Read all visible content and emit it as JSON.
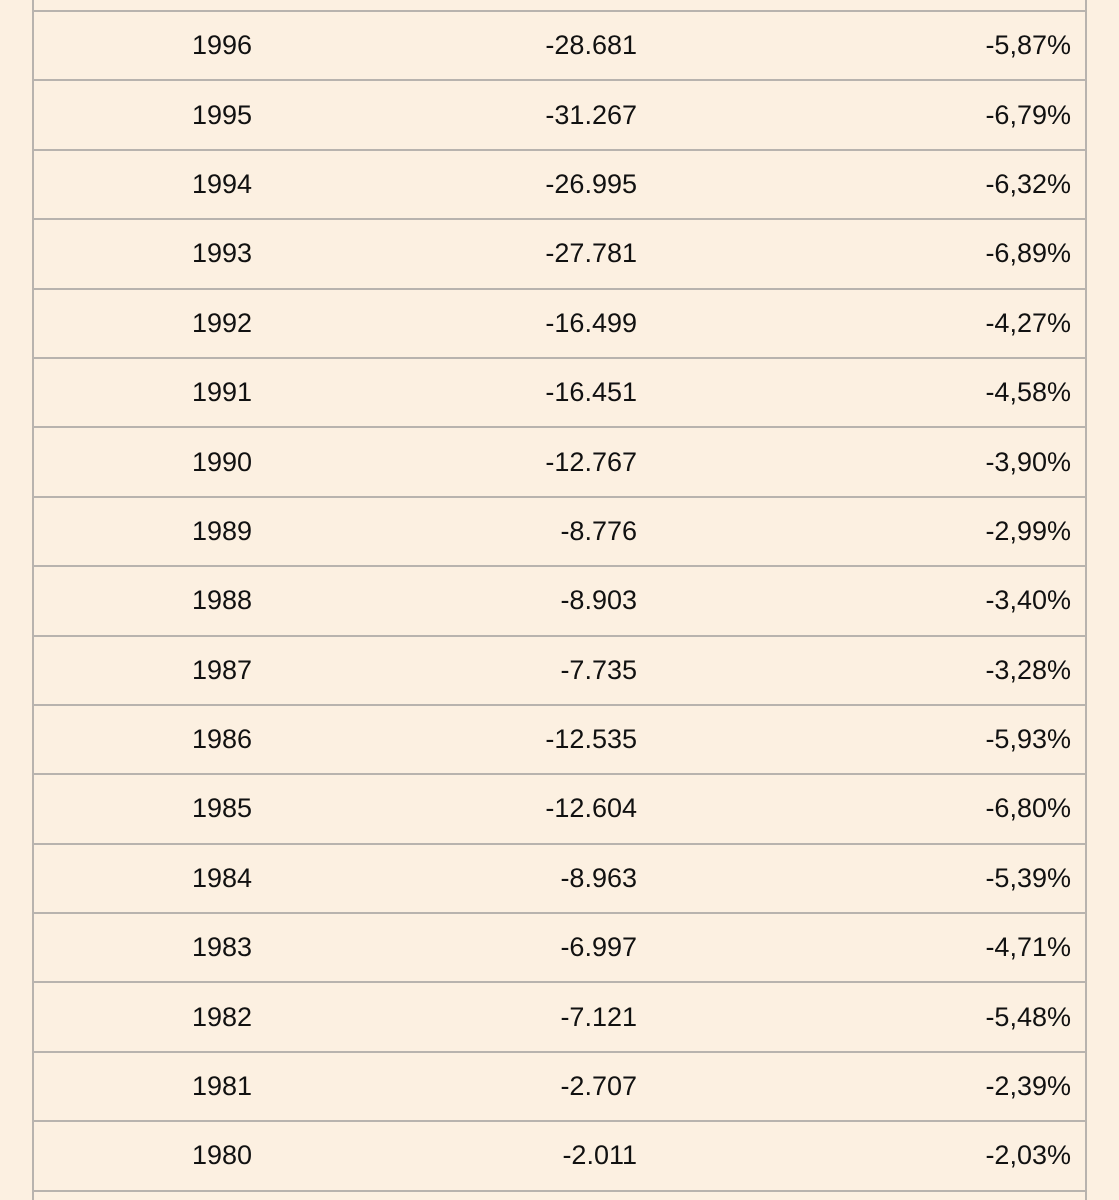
{
  "table": {
    "rows": [
      {
        "year": "1996",
        "value": "-28.681",
        "percent": "-5,87%"
      },
      {
        "year": "1995",
        "value": "-31.267",
        "percent": "-6,79%"
      },
      {
        "year": "1994",
        "value": "-26.995",
        "percent": "-6,32%"
      },
      {
        "year": "1993",
        "value": "-27.781",
        "percent": "-6,89%"
      },
      {
        "year": "1992",
        "value": "-16.499",
        "percent": "-4,27%"
      },
      {
        "year": "1991",
        "value": "-16.451",
        "percent": "-4,58%"
      },
      {
        "year": "1990",
        "value": "-12.767",
        "percent": "-3,90%"
      },
      {
        "year": "1989",
        "value": "-8.776",
        "percent": "-2,99%"
      },
      {
        "year": "1988",
        "value": "-8.903",
        "percent": "-3,40%"
      },
      {
        "year": "1987",
        "value": "-7.735",
        "percent": "-3,28%"
      },
      {
        "year": "1986",
        "value": "-12.535",
        "percent": "-5,93%"
      },
      {
        "year": "1985",
        "value": "-12.604",
        "percent": "-6,80%"
      },
      {
        "year": "1984",
        "value": "-8.963",
        "percent": "-5,39%"
      },
      {
        "year": "1983",
        "value": "-6.997",
        "percent": "-4,71%"
      },
      {
        "year": "1982",
        "value": "-7.121",
        "percent": "-5,48%"
      },
      {
        "year": "1981",
        "value": "-2.707",
        "percent": "-2,39%"
      },
      {
        "year": "1980",
        "value": "-2.011",
        "percent": "-2,03%"
      }
    ]
  },
  "colors": {
    "background": "#fcf0e1",
    "border": "#b8b3ae",
    "text": "#111111"
  }
}
